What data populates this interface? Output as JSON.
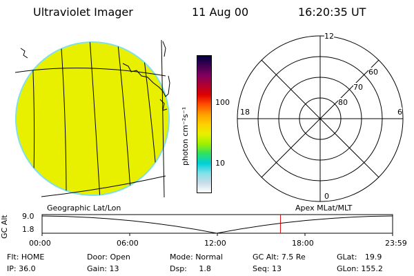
{
  "header": {
    "title": "Ultraviolet Imager",
    "date": "11 Aug 00",
    "time": "16:20:35 UT"
  },
  "colorbar": {
    "label": "photon cm⁻²s⁻¹",
    "tick_100": "100",
    "tick_10": "10",
    "colors": [
      "#ffffff",
      "#c8dce8",
      "#7fe0e8",
      "#00d0d8",
      "#30e060",
      "#a0f000",
      "#e8f000",
      "#ffd000",
      "#ffa000",
      "#ff5000",
      "#e00000",
      "#b00030",
      "#800060",
      "#400050",
      "#000040"
    ]
  },
  "polar_plot": {
    "mlt_labels": {
      "top": "12",
      "left": "18",
      "right": "6",
      "bottom": "0"
    },
    "lat_labels": [
      "60",
      "70",
      "80"
    ]
  },
  "timeline": {
    "left_label": "Geographic Lat/Lon",
    "right_label": "Apex MLat/MLT",
    "axis_label": "GC Alt",
    "y_top": "9.0",
    "y_bottom": "1.8",
    "ticks": [
      "00:00",
      "06:00",
      "12:00",
      "18:00",
      "23:59"
    ],
    "current_time_fraction": 0.68
  },
  "info": {
    "flt_label": "Flt:",
    "flt_value": "HOME",
    "ip_label": "IP:",
    "ip_value": "36.0",
    "door_label": "Door:",
    "door_value": "Open",
    "gain_label": "Gain:",
    "gain_value": "13",
    "mode_label": "Mode:",
    "mode_value": "Normal",
    "dsp_label": "Dsp:",
    "dsp_value": "1.8",
    "gcalt_label": "GC Alt:",
    "gcalt_value": "7.5 Re",
    "seq_label": "Seq:",
    "seq_value": "13",
    "glat_label": "GLat:",
    "glat_value": "19.9",
    "glon_label": "GLon:",
    "glon_value": "155.2"
  }
}
